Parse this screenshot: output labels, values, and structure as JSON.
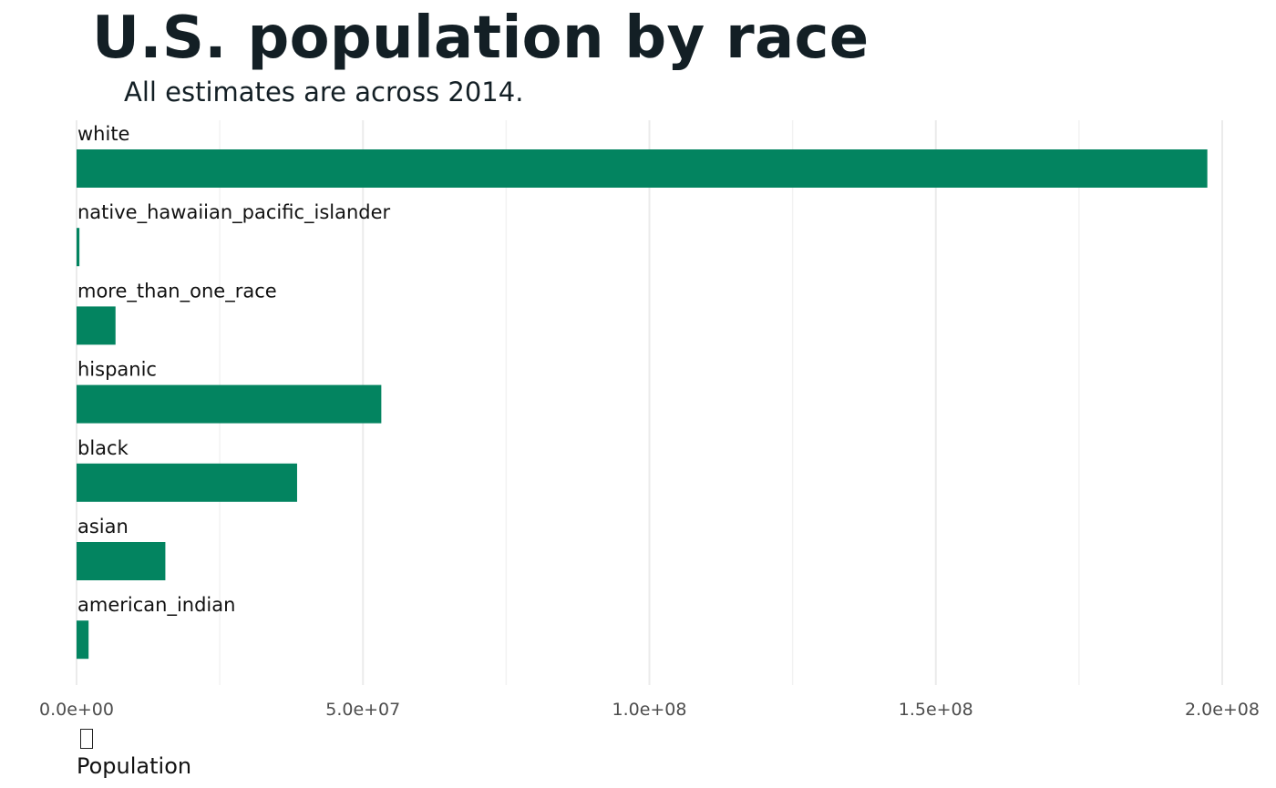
{
  "chart_data": {
    "type": "bar",
    "orientation": "horizontal",
    "title": "U.S. population by race",
    "subtitle": "All estimates are across 2014.",
    "xlabel": "Population",
    "ylabel": "",
    "categories": [
      "white",
      "native_hawaiian_pacific_islander",
      "more_than_one_race",
      "hispanic",
      "black",
      "asian",
      "american_indian"
    ],
    "values": [
      197400000,
      500000,
      6800000,
      53200000,
      38500000,
      15500000,
      2100000
    ],
    "xlim": [
      0,
      200000000
    ],
    "x_ticks": [
      0,
      50000000,
      100000000,
      150000000,
      200000000
    ],
    "x_tick_labels": [
      "0.0e+00",
      "5.0e+07",
      "1.0e+08",
      "1.5e+08",
      "2.0e+08"
    ],
    "bar_color": "#038460",
    "grid": true,
    "legend": "none"
  }
}
